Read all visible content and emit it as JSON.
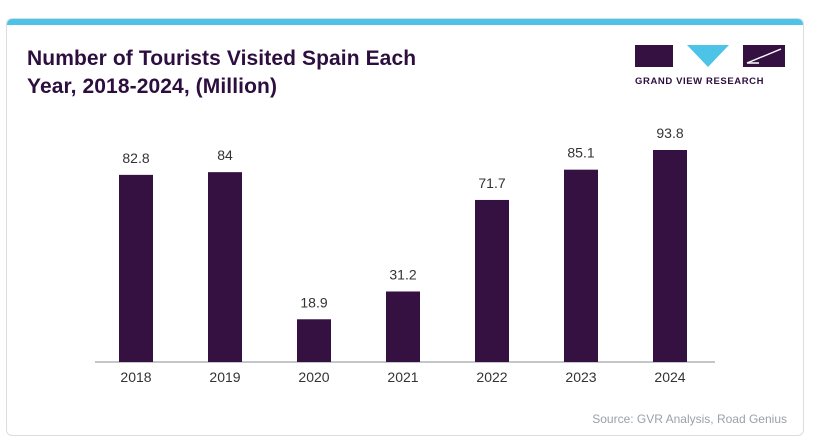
{
  "header": {
    "title": "Number of Tourists Visited Spain Each\nYear, 2018-2024, (Million)"
  },
  "logo": {
    "text": "GRAND VIEW RESEARCH",
    "color": "#2d0f3f"
  },
  "footer": {
    "source": "Source: GVR Analysis, Road Genius"
  },
  "colors": {
    "bar": "#351142",
    "accent_top_bar": "#4ec3e8",
    "text_dark": "#2d0f3f",
    "axis": "#8a8f94"
  },
  "chart_data": {
    "type": "bar",
    "title": "Number of Tourists Visited Spain Each Year, 2018-2024, (Million)",
    "categories": [
      "2018",
      "2019",
      "2020",
      "2021",
      "2022",
      "2023",
      "2024"
    ],
    "values": [
      82.8,
      84,
      18.9,
      31.2,
      71.7,
      85.1,
      93.8
    ],
    "value_labels": [
      "82.8",
      "84",
      "18.9",
      "31.2",
      "71.7",
      "85.1",
      "93.8"
    ],
    "xlabel": "",
    "ylabel": "",
    "ylim": [
      0,
      93.8
    ],
    "grid": false,
    "legend": "none"
  }
}
